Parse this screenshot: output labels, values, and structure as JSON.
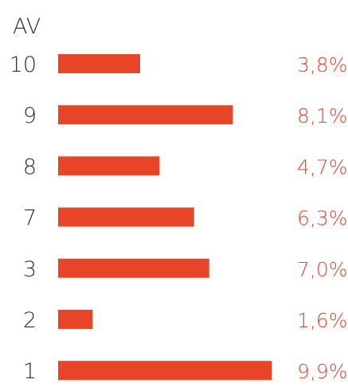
{
  "chart_data": {
    "type": "bar",
    "orientation": "horizontal",
    "axis_title": "AV",
    "categories": [
      "10",
      "9",
      "8",
      "7",
      "3",
      "2",
      "1"
    ],
    "values": [
      3.8,
      8.1,
      4.7,
      6.3,
      7.0,
      1.6,
      9.9
    ],
    "value_labels": [
      "3,8%",
      "8,1%",
      "4,7%",
      "6,3%",
      "7,0%",
      "1,6%",
      "9,9%"
    ],
    "unit": "%",
    "bar_color": "#e84427",
    "label_color": "#e84427",
    "text_color": "#333333",
    "grid": false,
    "legend": "none"
  }
}
